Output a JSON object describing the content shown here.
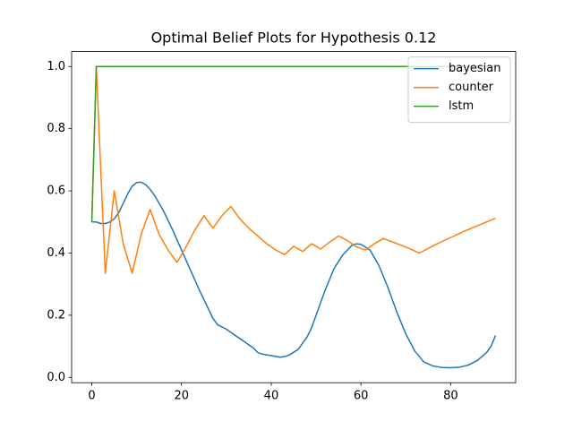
{
  "chart_data": {
    "type": "line",
    "title": "Optimal Belief Plots for Hypothesis 0.12",
    "xlim": [
      -4.5,
      94.5
    ],
    "ylim": [
      -0.017,
      1.048
    ],
    "xticks": [
      0,
      20,
      40,
      60,
      80
    ],
    "yticks": [
      {
        "value": 0,
        "label": "0.0"
      },
      {
        "value": 0.2,
        "label": "0.2"
      },
      {
        "value": 0.4,
        "label": "0.4"
      },
      {
        "value": 0.6,
        "label": "0.6"
      },
      {
        "value": 0.8,
        "label": "0.8"
      },
      {
        "value": 1.0,
        "label": "1.0"
      }
    ],
    "legend": "upper right",
    "series": [
      {
        "name": "bayesian",
        "color": "#1f77b4",
        "x": [
          0,
          1,
          2,
          3,
          4,
          5,
          6,
          7,
          8,
          9,
          10,
          11,
          12,
          13,
          14,
          16,
          18,
          20,
          22,
          24,
          26,
          27,
          28,
          30,
          32,
          34,
          36,
          37,
          38,
          40,
          42,
          43,
          44,
          46,
          48,
          49,
          50,
          52,
          54,
          56,
          58,
          59,
          60,
          62,
          64,
          66,
          68,
          70,
          72,
          74,
          76,
          78,
          80,
          82,
          84,
          86,
          88,
          89,
          90
        ],
        "values": [
          0.5,
          0.5,
          0.495,
          0.495,
          0.5,
          0.51,
          0.53,
          0.56,
          0.59,
          0.615,
          0.627,
          0.628,
          0.62,
          0.605,
          0.585,
          0.535,
          0.475,
          0.41,
          0.345,
          0.28,
          0.22,
          0.19,
          0.17,
          0.155,
          0.135,
          0.115,
          0.095,
          0.08,
          0.075,
          0.07,
          0.065,
          0.067,
          0.072,
          0.09,
          0.13,
          0.16,
          0.2,
          0.28,
          0.35,
          0.395,
          0.425,
          0.43,
          0.428,
          0.41,
          0.36,
          0.29,
          0.21,
          0.14,
          0.085,
          0.05,
          0.037,
          0.032,
          0.031,
          0.033,
          0.04,
          0.055,
          0.08,
          0.1,
          0.135
        ]
      },
      {
        "name": "counter",
        "color": "#ff7f0e",
        "x": [
          0,
          1,
          3,
          5,
          7,
          9,
          11,
          13,
          15,
          17,
          19,
          21,
          23,
          25,
          27,
          29,
          31,
          33,
          35,
          37,
          39,
          41,
          43,
          45,
          47,
          49,
          51,
          53,
          55,
          57,
          59,
          61,
          63,
          65,
          67,
          69,
          71,
          73,
          75,
          77,
          80,
          83,
          86,
          90
        ],
        "values": [
          0.5,
          1.0,
          0.335,
          0.6,
          0.43,
          0.335,
          0.46,
          0.54,
          0.46,
          0.41,
          0.37,
          0.42,
          0.475,
          0.52,
          0.48,
          0.52,
          0.55,
          0.51,
          0.48,
          0.455,
          0.43,
          0.41,
          0.395,
          0.422,
          0.405,
          0.43,
          0.413,
          0.435,
          0.455,
          0.44,
          0.42,
          0.41,
          0.43,
          0.447,
          0.436,
          0.425,
          0.413,
          0.4,
          0.415,
          0.43,
          0.45,
          0.47,
          0.488,
          0.512
        ]
      },
      {
        "name": "lstm",
        "color": "#2ca02c",
        "x": [
          0,
          1,
          90
        ],
        "values": [
          0.5,
          1.0,
          1.0
        ]
      }
    ]
  }
}
